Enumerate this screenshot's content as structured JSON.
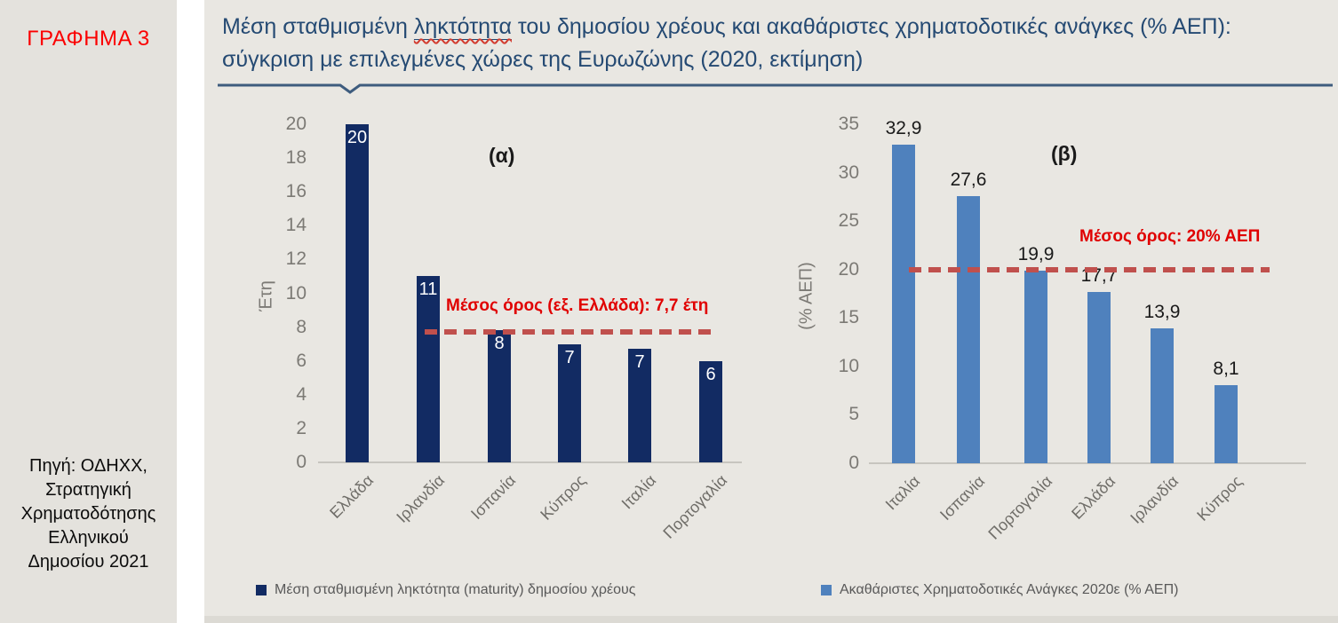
{
  "sidebar": {
    "chart_label": "ΓΡΑΦΗΜΑ 3",
    "source_lines": [
      "Πηγή: ΟΔΗΧΧ,",
      "Στρατηγική",
      "Χρηματοδότησης",
      "Ελληνικού",
      "Δημοσίου  2021"
    ]
  },
  "header": {
    "title_part1": "Μέση σταθμισμένη ",
    "title_underlined": "ληκτότητα",
    "title_part2": " του δημοσίου χρέους και ακαθάριστες χρηματοδοτικές ανάγκες (% ΑΕΠ):",
    "title_line2": "σύγκριση με επιλεγμένες χώρες της Ευρωζώνης (2020, εκτίμηση)"
  },
  "chart_data": [
    {
      "type": "bar",
      "panel_label": "(α)",
      "ylabel": "Έτη",
      "categories": [
        "Ελλάδα",
        "Ιρλανδία",
        "Ισπανία",
        "Κύπρος",
        "Ιταλία",
        "Πορτογαλία"
      ],
      "values": [
        20,
        11,
        7.8,
        7,
        6.7,
        6
      ],
      "bar_labels": [
        "20",
        "11",
        "8",
        "7",
        "7",
        "6"
      ],
      "ylim": [
        0,
        20
      ],
      "yticks": [
        "20",
        "18",
        "16",
        "14",
        "12",
        "10",
        "8",
        "6",
        "4",
        "2",
        "0"
      ],
      "grid": false,
      "avg_line": {
        "value": 7.7,
        "label": "Μέσος όρος (εξ. Ελλάδα):  7,7 έτη"
      },
      "bar_color": "#122b63",
      "bar_label_color": "#ffffff",
      "bar_label_inside": true
    },
    {
      "type": "bar",
      "panel_label": "(β)",
      "ylabel": "(% ΑΕΠ)",
      "categories": [
        "Ιταλία",
        "Ισπανία",
        "Πορτογαλία",
        "Ελλάδα",
        "Ιρλανδία",
        "Κύπρος"
      ],
      "values": [
        32.9,
        27.6,
        19.9,
        17.7,
        13.9,
        8.1
      ],
      "bar_labels": [
        "32,9",
        "27,6",
        "19,9",
        "17,7",
        "13,9",
        "8,1"
      ],
      "ylim": [
        0,
        35
      ],
      "yticks": [
        "35",
        "30",
        "25",
        "20",
        "15",
        "10",
        "5",
        "0"
      ],
      "grid": false,
      "avg_line": {
        "value": 20,
        "label": "Μέσος όρος: 20% ΑΕΠ"
      },
      "bar_color": "#4f81bd",
      "bar_label_color": "#1a1a1a",
      "bar_label_inside": false
    }
  ],
  "legend": [
    {
      "label": "Μέση σταθμισμένη ληκτότητα (maturity) δημοσίου χρέους",
      "color": "#122b63"
    },
    {
      "label": "Ακαθάριστες Χρηματοδοτικές Ανάγκες 2020ε (% ΑΕΠ)",
      "color": "#4f81bd"
    }
  ],
  "colors": {
    "sidebar_bg": "#e4e2dd",
    "panel_bg": "#e9e7e2",
    "title_text": "#254a73",
    "divider": "#3e5c7e",
    "figure_label_red": "#fb0000",
    "annotation_red": "#e00000",
    "dashed_line": "#c0504d",
    "axis_text": "#7c7a75",
    "legend_text": "#595959"
  }
}
